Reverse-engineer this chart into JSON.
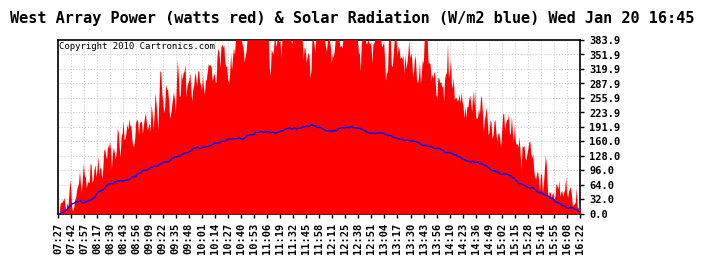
{
  "title": "West Array Power (watts red) & Solar Radiation (W/m2 blue) Wed Jan 20 16:45",
  "copyright": "Copyright 2010 Cartronics.com",
  "y_ticks": [
    0.0,
    32.0,
    64.0,
    96.0,
    128.0,
    160.0,
    191.9,
    223.9,
    255.9,
    287.9,
    319.9,
    351.9,
    383.9
  ],
  "y_max": 383.9,
  "y_min": 0.0,
  "x_labels": [
    "07:27",
    "07:42",
    "07:57",
    "08:17",
    "08:30",
    "08:43",
    "08:56",
    "09:09",
    "09:22",
    "09:35",
    "09:48",
    "10:01",
    "10:14",
    "10:27",
    "10:40",
    "10:53",
    "11:06",
    "11:19",
    "11:32",
    "11:45",
    "11:58",
    "12:11",
    "12:25",
    "12:38",
    "12:51",
    "13:04",
    "13:17",
    "13:30",
    "13:43",
    "13:56",
    "14:10",
    "14:23",
    "14:36",
    "14:49",
    "15:02",
    "15:15",
    "15:28",
    "15:41",
    "15:55",
    "16:08",
    "16:22"
  ],
  "bg_color": "#ffffff",
  "plot_bg_color": "#ffffff",
  "grid_color": "#cccccc",
  "fill_color": "#ff0000",
  "line_color": "#0000ff",
  "title_fontsize": 11,
  "tick_fontsize": 7.5,
  "copyright_fontsize": 6.5
}
